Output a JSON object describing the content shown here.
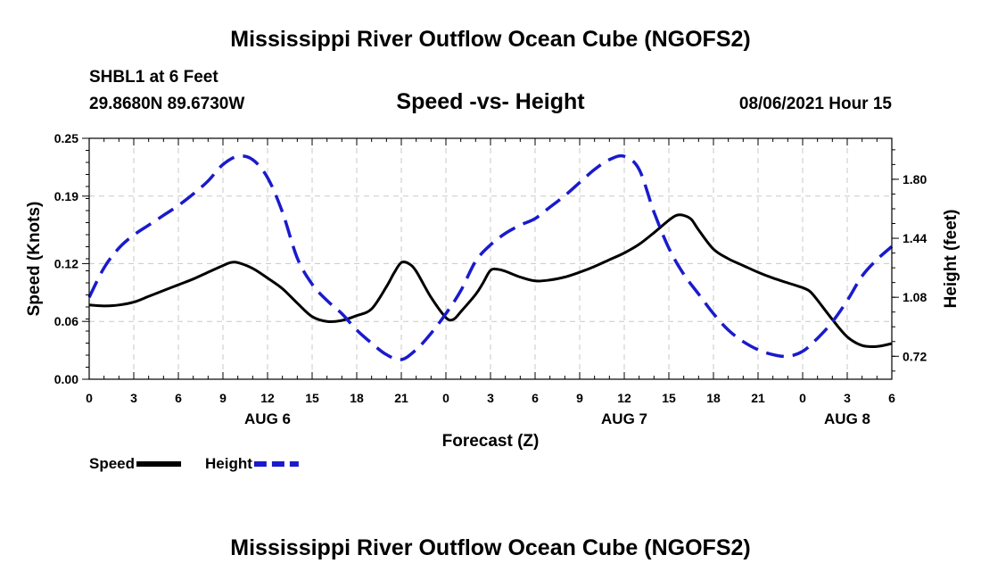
{
  "header": {
    "title": "Mississippi River Outflow Ocean Cube (NGOFS2)",
    "station": "SHBL1 at 6 Feet",
    "coords": "29.8680N  89.6730W",
    "subtitle": "Speed -vs- Height",
    "datetime": "08/06/2021 Hour 15"
  },
  "footer": {
    "title": "Mississippi River Outflow Ocean Cube (NGOFS2)"
  },
  "chart_data": {
    "type": "line",
    "xlabel": "Forecast (Z)",
    "x_hours_from_start": [
      0,
      3,
      6,
      9,
      12,
      15,
      18,
      21,
      24,
      27,
      30,
      33,
      36,
      39,
      42,
      45,
      48,
      51,
      54
    ],
    "x_tick_labels": [
      "0",
      "3",
      "6",
      "9",
      "12",
      "15",
      "18",
      "21",
      "0",
      "3",
      "6",
      "9",
      "12",
      "15",
      "18",
      "21",
      "0",
      "3",
      "6"
    ],
    "xlim": [
      0,
      54
    ],
    "day_labels": [
      {
        "label": "AUG 6",
        "hour": 12
      },
      {
        "label": "AUG 7",
        "hour": 36
      },
      {
        "label": "AUG 8",
        "hour": 51
      }
    ],
    "left_axis": {
      "label": "Speed (Knots)",
      "ylim": [
        0.0,
        0.25
      ],
      "ticks": [
        0.0,
        0.06,
        0.12,
        0.19,
        0.25
      ],
      "tick_labels": [
        "0.00",
        "0.06",
        "0.12",
        "0.19",
        "0.25"
      ]
    },
    "right_axis": {
      "label": "Height (feet)",
      "ylim": [
        0.58,
        2.05
      ],
      "ticks": [
        0.72,
        1.08,
        1.44,
        1.8
      ],
      "tick_labels": [
        "0.72",
        "1.08",
        "1.44",
        "1.80"
      ]
    },
    "series": [
      {
        "name": "Speed",
        "axis": "left",
        "color": "#000000",
        "style": "solid",
        "points": [
          [
            0,
            0.077
          ],
          [
            1,
            0.076
          ],
          [
            2,
            0.077
          ],
          [
            3,
            0.08
          ],
          [
            4,
            0.086
          ],
          [
            5,
            0.092
          ],
          [
            6,
            0.098
          ],
          [
            7,
            0.104
          ],
          [
            8,
            0.111
          ],
          [
            9,
            0.118
          ],
          [
            9.5,
            0.121
          ],
          [
            10,
            0.121
          ],
          [
            11,
            0.115
          ],
          [
            12,
            0.105
          ],
          [
            13,
            0.094
          ],
          [
            14,
            0.079
          ],
          [
            15,
            0.065
          ],
          [
            16,
            0.06
          ],
          [
            17,
            0.061
          ],
          [
            18,
            0.066
          ],
          [
            19,
            0.073
          ],
          [
            20,
            0.096
          ],
          [
            20.5,
            0.11
          ],
          [
            21,
            0.121
          ],
          [
            21.5,
            0.12
          ],
          [
            22,
            0.112
          ],
          [
            23,
            0.085
          ],
          [
            24,
            0.064
          ],
          [
            24.5,
            0.062
          ],
          [
            25,
            0.07
          ],
          [
            26,
            0.088
          ],
          [
            26.5,
            0.1
          ],
          [
            27,
            0.113
          ],
          [
            27.5,
            0.114
          ],
          [
            28,
            0.112
          ],
          [
            29,
            0.106
          ],
          [
            30,
            0.102
          ],
          [
            31,
            0.103
          ],
          [
            32,
            0.106
          ],
          [
            33,
            0.111
          ],
          [
            34,
            0.117
          ],
          [
            35,
            0.124
          ],
          [
            36,
            0.131
          ],
          [
            37,
            0.14
          ],
          [
            38,
            0.152
          ],
          [
            39,
            0.165
          ],
          [
            39.5,
            0.17
          ],
          [
            40,
            0.17
          ],
          [
            40.5,
            0.166
          ],
          [
            41,
            0.155
          ],
          [
            42,
            0.135
          ],
          [
            43,
            0.125
          ],
          [
            44,
            0.118
          ],
          [
            45,
            0.111
          ],
          [
            46,
            0.105
          ],
          [
            47,
            0.1
          ],
          [
            48,
            0.095
          ],
          [
            48.5,
            0.091
          ],
          [
            49,
            0.082
          ],
          [
            50,
            0.062
          ],
          [
            51,
            0.044
          ],
          [
            52,
            0.035
          ],
          [
            53,
            0.034
          ],
          [
            54,
            0.037
          ]
        ]
      },
      {
        "name": "Height",
        "axis": "right",
        "color": "#1a1acc",
        "style": "dashed",
        "points": [
          [
            0,
            1.08
          ],
          [
            1,
            1.26
          ],
          [
            2,
            1.38
          ],
          [
            3,
            1.46
          ],
          [
            4,
            1.52
          ],
          [
            5,
            1.58
          ],
          [
            6,
            1.64
          ],
          [
            7,
            1.71
          ],
          [
            8,
            1.79
          ],
          [
            9,
            1.89
          ],
          [
            10,
            1.94
          ],
          [
            11,
            1.92
          ],
          [
            12,
            1.81
          ],
          [
            13,
            1.6
          ],
          [
            14,
            1.32
          ],
          [
            15,
            1.16
          ],
          [
            16,
            1.06
          ],
          [
            17,
            0.98
          ],
          [
            18,
            0.88
          ],
          [
            19,
            0.8
          ],
          [
            20,
            0.73
          ],
          [
            21,
            0.7
          ],
          [
            22,
            0.76
          ],
          [
            23,
            0.86
          ],
          [
            24,
            0.98
          ],
          [
            25,
            1.12
          ],
          [
            26,
            1.3
          ],
          [
            27,
            1.4
          ],
          [
            28,
            1.47
          ],
          [
            29,
            1.52
          ],
          [
            30,
            1.56
          ],
          [
            31,
            1.63
          ],
          [
            32,
            1.7
          ],
          [
            33,
            1.78
          ],
          [
            34,
            1.86
          ],
          [
            35,
            1.92
          ],
          [
            36,
            1.94
          ],
          [
            37,
            1.86
          ],
          [
            38,
            1.6
          ],
          [
            39,
            1.38
          ],
          [
            40,
            1.22
          ],
          [
            41,
            1.1
          ],
          [
            42,
            0.98
          ],
          [
            43,
            0.88
          ],
          [
            44,
            0.81
          ],
          [
            45,
            0.76
          ],
          [
            46,
            0.73
          ],
          [
            47,
            0.72
          ],
          [
            48,
            0.75
          ],
          [
            49,
            0.83
          ],
          [
            50,
            0.93
          ],
          [
            51,
            1.06
          ],
          [
            52,
            1.21
          ],
          [
            53,
            1.31
          ],
          [
            54,
            1.39
          ]
        ]
      }
    ],
    "legend": [
      {
        "label": "Speed",
        "color": "#000000",
        "style": "solid"
      },
      {
        "label": "Height",
        "color": "#1a1acc",
        "style": "dashed"
      }
    ]
  }
}
